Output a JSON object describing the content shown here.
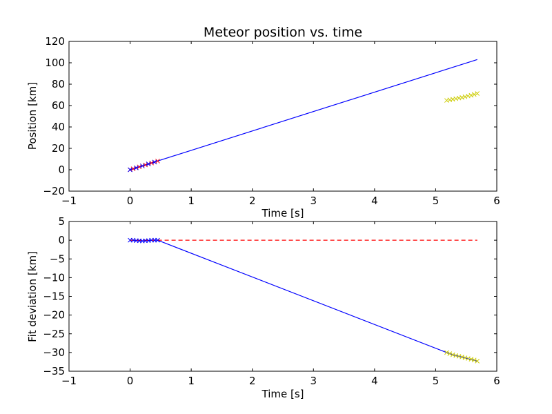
{
  "chart_data": [
    {
      "type": "line",
      "title": "Meteor position vs. time",
      "xlabel": "Time [s]",
      "ylabel": "Position [km]",
      "xlim": [
        -1,
        6
      ],
      "ylim": [
        -20,
        120
      ],
      "xticks": [
        -1,
        0,
        1,
        2,
        3,
        4,
        5,
        6
      ],
      "yticks": [
        -20,
        0,
        20,
        40,
        60,
        80,
        100,
        120
      ],
      "grid": false,
      "series": [
        {
          "kind": "line",
          "color": "#0000ff",
          "x": [
            0.0,
            5.68
          ],
          "y": [
            0.0,
            103.0
          ]
        },
        {
          "kind": "markers",
          "marker": "x",
          "color": "#ff0000",
          "x": [
            0.0,
            0.05,
            0.1,
            0.15,
            0.2,
            0.25,
            0.3,
            0.35,
            0.4,
            0.45
          ],
          "y": [
            0.0,
            0.9,
            1.8,
            2.7,
            3.6,
            4.5,
            5.4,
            6.3,
            7.2,
            8.1
          ]
        },
        {
          "kind": "markers",
          "marker": "x",
          "color": "#0000ff",
          "x": [
            0.0,
            0.1,
            0.2,
            0.3,
            0.4
          ],
          "y": [
            0.0,
            1.8,
            3.6,
            5.4,
            7.2
          ]
        },
        {
          "kind": "markers",
          "marker": "x",
          "color": "#cccc00",
          "x": [
            5.18,
            5.23,
            5.28,
            5.33,
            5.38,
            5.43,
            5.48,
            5.53,
            5.58,
            5.63,
            5.68
          ],
          "y": [
            64.8,
            65.3,
            65.9,
            66.4,
            67.0,
            67.6,
            68.2,
            68.9,
            69.6,
            70.4,
            71.3
          ]
        }
      ]
    },
    {
      "type": "line",
      "title": "",
      "xlabel": "Time [s]",
      "ylabel": "Fit deviation [km]",
      "xlim": [
        -1,
        6
      ],
      "ylim": [
        -35,
        5
      ],
      "xticks": [
        -1,
        0,
        1,
        2,
        3,
        4,
        5,
        6
      ],
      "yticks": [
        -35,
        -30,
        -25,
        -20,
        -15,
        -10,
        -5,
        0,
        5
      ],
      "grid": false,
      "series": [
        {
          "kind": "line",
          "color": "#0000ff",
          "x": [
            0.0,
            0.05,
            0.1,
            0.15,
            0.2,
            0.25,
            0.3,
            0.35,
            0.4,
            0.45,
            5.18,
            5.3,
            5.45,
            5.68
          ],
          "y": [
            0.0,
            0.0,
            -0.1,
            -0.15,
            -0.2,
            -0.15,
            -0.1,
            0.0,
            0.0,
            0.0,
            -30.0,
            -30.7,
            -31.3,
            -32.3
          ]
        },
        {
          "kind": "line",
          "dash": true,
          "color": "#ff0000",
          "x": [
            0.0,
            5.68
          ],
          "y": [
            0.0,
            0.0
          ]
        },
        {
          "kind": "markers",
          "marker": "x",
          "color": "#0000ff",
          "x": [
            0.0,
            0.05,
            0.1,
            0.15,
            0.2,
            0.25,
            0.3,
            0.35,
            0.4,
            0.45
          ],
          "y": [
            0.0,
            0.0,
            -0.1,
            -0.15,
            -0.2,
            -0.15,
            -0.1,
            0.0,
            0.0,
            0.0
          ]
        },
        {
          "kind": "markers",
          "marker": "x",
          "color": "#cccc00",
          "x": [
            5.18,
            5.23,
            5.28,
            5.33,
            5.38,
            5.43,
            5.48,
            5.53,
            5.58,
            5.63,
            5.68
          ],
          "y": [
            -30.0,
            -30.3,
            -30.6,
            -30.8,
            -31.0,
            -31.2,
            -31.4,
            -31.6,
            -31.8,
            -32.0,
            -32.3
          ]
        }
      ]
    }
  ]
}
